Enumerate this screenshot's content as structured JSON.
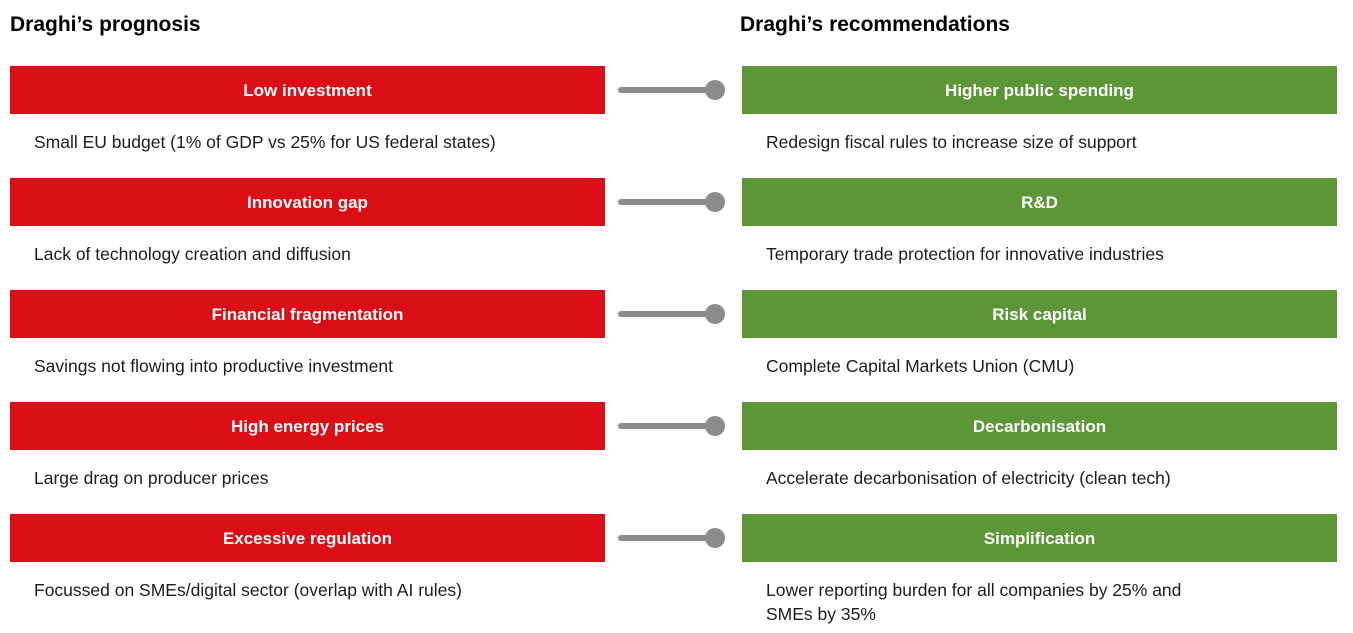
{
  "colors": {
    "prognosis_bar": "#dc0e15",
    "recommendation_bar": "#5c9637",
    "connector": "#8c8c8c",
    "caption_text": "#1d1d1b"
  },
  "headers": {
    "left": "Draghi’s prognosis",
    "right": "Draghi’s recommendations"
  },
  "rows": [
    {
      "prognosis": {
        "title": "Low investment",
        "desc": "Small EU budget (1% of GDP vs 25% for US federal states)"
      },
      "recommendation": {
        "title": "Higher public spending",
        "desc": "Redesign fiscal rules to increase size of support"
      }
    },
    {
      "prognosis": {
        "title": "Innovation gap",
        "desc": "Lack of technology creation and diffusion"
      },
      "recommendation": {
        "title": "R&D",
        "desc": "Temporary trade protection for innovative industries"
      }
    },
    {
      "prognosis": {
        "title": "Financial fragmentation",
        "desc": "Savings not flowing into productive investment"
      },
      "recommendation": {
        "title": "Risk capital",
        "desc": "Complete Capital Markets Union (CMU)"
      }
    },
    {
      "prognosis": {
        "title": "High energy prices",
        "desc": "Large drag on producer prices"
      },
      "recommendation": {
        "title": "Decarbonisation",
        "desc": "Accelerate decarbonisation of electricity (clean tech)"
      }
    },
    {
      "prognosis": {
        "title": "Excessive regulation",
        "desc": "Focussed on SMEs/digital sector (overlap with AI rules)"
      },
      "recommendation": {
        "title": "Simplification",
        "desc": "Lower reporting burden for all companies by 25% and\nSMEs by 35%"
      }
    }
  ]
}
